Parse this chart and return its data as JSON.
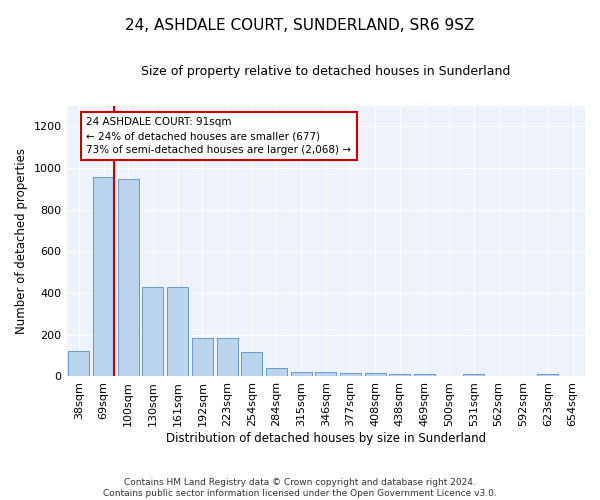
{
  "title": "24, ASHDALE COURT, SUNDERLAND, SR6 9SZ",
  "subtitle": "Size of property relative to detached houses in Sunderland",
  "xlabel": "Distribution of detached houses by size in Sunderland",
  "ylabel": "Number of detached properties",
  "categories": [
    "38sqm",
    "69sqm",
    "100sqm",
    "130sqm",
    "161sqm",
    "192sqm",
    "223sqm",
    "254sqm",
    "284sqm",
    "315sqm",
    "346sqm",
    "377sqm",
    "408sqm",
    "438sqm",
    "469sqm",
    "500sqm",
    "531sqm",
    "562sqm",
    "592sqm",
    "623sqm",
    "654sqm"
  ],
  "values": [
    120,
    955,
    948,
    428,
    430,
    183,
    183,
    118,
    40,
    22,
    22,
    15,
    15,
    12,
    12,
    0,
    10,
    0,
    0,
    10,
    0
  ],
  "bar_color": "#bad4ee",
  "bar_edge_color": "#6699cc",
  "bar_linewidth": 0.7,
  "vline_color": "#cc0000",
  "annotation_text": "24 ASHDALE COURT: 91sqm\n← 24% of detached houses are smaller (677)\n73% of semi-detached houses are larger (2,068) →",
  "annotation_box_color": "#ffffff",
  "annotation_box_edgecolor": "#cc0000",
  "ylim": [
    0,
    1300
  ],
  "yticks": [
    0,
    200,
    400,
    600,
    800,
    1000,
    1200
  ],
  "bg_color": "#eef2fa",
  "footer": "Contains HM Land Registry data © Crown copyright and database right 2024.\nContains public sector information licensed under the Open Government Licence v3.0.",
  "title_fontsize": 11,
  "subtitle_fontsize": 9,
  "xlabel_fontsize": 8.5,
  "ylabel_fontsize": 8.5,
  "tick_fontsize": 8,
  "footer_fontsize": 6.5
}
